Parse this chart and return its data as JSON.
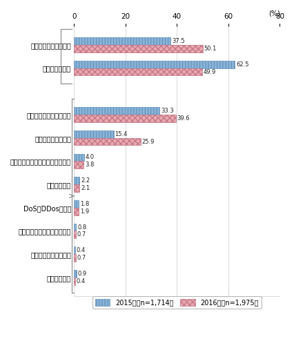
{
  "categories": [
    "何らかの被害を受けた",
    "特に被害はない",
    "",
    "ウイルスを発見又は感染",
    "標的型メールの送付",
    "スパムメールの中継利用・踏み台",
    "不正アクセス",
    "DoS（DDos）攻撃",
    "故意・過失による情報漏えい",
    "ホームページの改ざん",
    "その他の侵害"
  ],
  "values_2015": [
    37.5,
    62.5,
    null,
    33.3,
    15.4,
    4.0,
    2.2,
    1.8,
    0.8,
    0.4,
    0.9
  ],
  "values_2016": [
    50.1,
    49.9,
    null,
    39.6,
    25.9,
    3.8,
    2.1,
    1.9,
    0.7,
    0.7,
    0.4
  ],
  "color_2015": "#8ab4d8",
  "color_2016": "#e8a8b0",
  "hatch_2015": "||||",
  "hatch_2016": "xxxx",
  "edgecolor_2015": "#6090b8",
  "edgecolor_2016": "#c07080",
  "legend_2015": "2015年（n=1,714）",
  "legend_2016": "2016年（n=1,975）",
  "pct_label": "(%)",
  "xlim": [
    0,
    80
  ],
  "xticks": [
    0,
    20,
    40,
    60,
    80
  ],
  "bar_height": 0.32,
  "figsize": [
    4.27,
    4.91
  ],
  "dpi": 100
}
